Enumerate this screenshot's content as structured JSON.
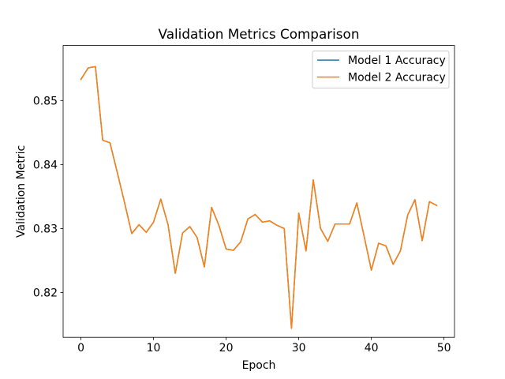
{
  "chart_data": {
    "type": "line",
    "title": "Validation Metrics Comparison",
    "xlabel": "Epoch",
    "ylabel": "Validation Metric",
    "xlim": [
      -2.45,
      51.45
    ],
    "ylim": [
      0.813,
      0.8586
    ],
    "xticks": [
      0,
      10,
      20,
      30,
      40,
      50
    ],
    "yticks": [
      0.82,
      0.83,
      0.84,
      0.85
    ],
    "grid": false,
    "legend_position": "top-right",
    "x": [
      0,
      1,
      2,
      3,
      4,
      5,
      6,
      7,
      8,
      9,
      10,
      11,
      12,
      13,
      14,
      15,
      16,
      17,
      18,
      19,
      20,
      21,
      22,
      23,
      24,
      25,
      26,
      27,
      28,
      29,
      30,
      31,
      32,
      33,
      34,
      35,
      36,
      37,
      38,
      39,
      40,
      41,
      42,
      43,
      44,
      45,
      46,
      47,
      48,
      49
    ],
    "series": [
      {
        "name": "Model 1 Accuracy",
        "color": "#1f77b4",
        "values": [
          0.8533,
          0.8551,
          0.8553,
          0.8438,
          0.8434,
          0.8388,
          0.8341,
          0.8292,
          0.8306,
          0.8294,
          0.831,
          0.8346,
          0.8306,
          0.823,
          0.8293,
          0.8303,
          0.8286,
          0.824,
          0.8333,
          0.8305,
          0.8268,
          0.8266,
          0.8279,
          0.8315,
          0.8322,
          0.831,
          0.8312,
          0.8305,
          0.83,
          0.8144,
          0.8324,
          0.8265,
          0.8376,
          0.83,
          0.828,
          0.8307,
          0.8307,
          0.8307,
          0.834,
          0.8288,
          0.8235,
          0.8277,
          0.8273,
          0.8244,
          0.8265,
          0.8321,
          0.8345,
          0.8281,
          0.8342,
          0.8336
        ]
      },
      {
        "name": "Model 2 Accuracy",
        "color": "#ff7f0e",
        "values": [
          0.8533,
          0.8551,
          0.8553,
          0.8438,
          0.8434,
          0.8388,
          0.8341,
          0.8292,
          0.8306,
          0.8294,
          0.831,
          0.8346,
          0.8306,
          0.823,
          0.8293,
          0.8303,
          0.8286,
          0.824,
          0.8333,
          0.8305,
          0.8268,
          0.8266,
          0.8279,
          0.8315,
          0.8322,
          0.831,
          0.8312,
          0.8305,
          0.83,
          0.8144,
          0.8324,
          0.8265,
          0.8376,
          0.83,
          0.828,
          0.8307,
          0.8307,
          0.8307,
          0.834,
          0.8288,
          0.8235,
          0.8277,
          0.8273,
          0.8244,
          0.8265,
          0.8321,
          0.8345,
          0.8281,
          0.8342,
          0.8336
        ]
      }
    ]
  }
}
